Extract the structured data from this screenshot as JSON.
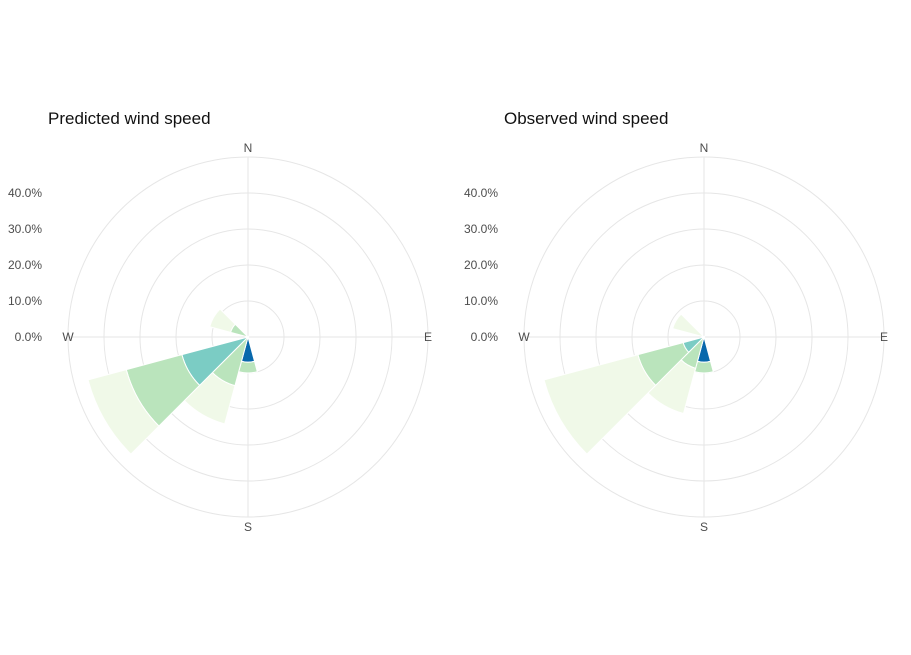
{
  "chart_data": [
    {
      "type": "polar-bar",
      "title": "Predicted wind speed",
      "compass_labels": [
        "N",
        "E",
        "S",
        "W"
      ],
      "radial_ticks": [
        "0.0%",
        "10.0%",
        "20.0%",
        "30.0%",
        "40.0%"
      ],
      "radial_tick_values": [
        0,
        10,
        20,
        30,
        40
      ],
      "rmax": 50,
      "direction_width_deg": 30,
      "color_scale": [
        "#f0f9e8",
        "#bae4bc",
        "#7bccc4",
        "#43a2ca",
        "#0868ac"
      ],
      "sectors": [
        {
          "direction": 180,
          "bins": [
            {
              "color": "#0868ac",
              "value": 7
            },
            {
              "color": "#bae4bc",
              "value": 3
            }
          ]
        },
        {
          "direction": 210,
          "bins": [
            {
              "color": "#bae4bc",
              "value": 14
            },
            {
              "color": "#f0f9e8",
              "value": 11
            }
          ]
        },
        {
          "direction": 240,
          "bins": [
            {
              "color": "#7bccc4",
              "value": 19
            },
            {
              "color": "#bae4bc",
              "value": 16
            },
            {
              "color": "#f0f9e8",
              "value": 11
            }
          ]
        },
        {
          "direction": 300,
          "bins": [
            {
              "color": "#bae4bc",
              "value": 5
            },
            {
              "color": "#f0f9e8",
              "value": 6
            }
          ]
        }
      ]
    },
    {
      "type": "polar-bar",
      "title": "Observed wind speed",
      "compass_labels": [
        "N",
        "E",
        "S",
        "W"
      ],
      "radial_ticks": [
        "0.0%",
        "10.0%",
        "20.0%",
        "30.0%",
        "40.0%"
      ],
      "radial_tick_values": [
        0,
        10,
        20,
        30,
        40
      ],
      "rmax": 50,
      "direction_width_deg": 30,
      "color_scale": [
        "#f0f9e8",
        "#bae4bc",
        "#7bccc4",
        "#43a2ca",
        "#0868ac"
      ],
      "sectors": [
        {
          "direction": 180,
          "bins": [
            {
              "color": "#0868ac",
              "value": 7
            },
            {
              "color": "#bae4bc",
              "value": 3
            }
          ]
        },
        {
          "direction": 210,
          "bins": [
            {
              "color": "#bae4bc",
              "value": 9
            },
            {
              "color": "#f0f9e8",
              "value": 13
            }
          ]
        },
        {
          "direction": 240,
          "bins": [
            {
              "color": "#7bccc4",
              "value": 6
            },
            {
              "color": "#bae4bc",
              "value": 13
            },
            {
              "color": "#f0f9e8",
              "value": 27
            }
          ]
        },
        {
          "direction": 300,
          "bins": [
            {
              "color": "#f0f9e8",
              "value": 9
            }
          ]
        }
      ]
    }
  ]
}
